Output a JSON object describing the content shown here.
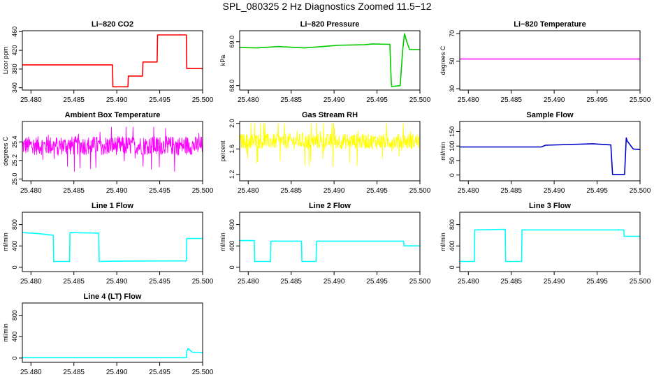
{
  "figure": {
    "title": "SPL_080325  2 Hz Diagnostics Zoomed 11.5−12"
  },
  "chart_data": [
    {
      "type": "line",
      "title": "Li−820 CO2",
      "ylabel": "Licor ppm",
      "xlim": [
        25.479,
        25.5
      ],
      "ylim": [
        335,
        462
      ],
      "xticks": [
        "25.480",
        "25.485",
        "25.490",
        "25.495",
        "25.500"
      ],
      "yticks": [
        "340",
        "380",
        "420",
        "460"
      ],
      "grid": false,
      "series": [
        {
          "color": "#ff0000",
          "x": [
            25.479,
            25.4895,
            25.48955,
            25.4913,
            25.49135,
            25.493,
            25.49305,
            25.4947,
            25.49475,
            25.4981,
            25.49815,
            25.5
          ],
          "y": [
            389,
            389,
            342,
            342,
            365,
            365,
            395,
            395,
            453,
            453,
            381,
            381
          ]
        }
      ]
    },
    {
      "type": "line",
      "title": "Li−820 Pressure",
      "ylabel": "kPa",
      "xlim": [
        25.479,
        25.5
      ],
      "ylim": [
        67.9,
        69.25
      ],
      "xticks": [
        "25.480",
        "25.485",
        "25.490",
        "25.495",
        "25.500"
      ],
      "yticks": [
        "68.0",
        "69.0"
      ],
      "grid": false,
      "series": [
        {
          "color": "#00cc00",
          "x": [
            25.479,
            25.481,
            25.4835,
            25.4865,
            25.488,
            25.4905,
            25.4935,
            25.4945,
            25.4965,
            25.49665,
            25.4967,
            25.4977,
            25.498,
            25.4982,
            25.4985,
            25.4988,
            25.5
          ],
          "y": [
            68.87,
            68.86,
            68.89,
            68.86,
            68.88,
            68.92,
            68.93,
            68.95,
            68.94,
            68.14,
            67.98,
            68.0,
            68.82,
            69.18,
            68.98,
            68.82,
            68.82
          ]
        }
      ]
    },
    {
      "type": "line",
      "title": "Li−820 Temperature",
      "ylabel": "degrees C",
      "xlim": [
        25.479,
        25.5
      ],
      "ylim": [
        29,
        72
      ],
      "xticks": [
        "25.480",
        "25.485",
        "25.490",
        "25.495",
        "25.500"
      ],
      "yticks": [
        "30",
        "50",
        "70"
      ],
      "grid": false,
      "series": [
        {
          "color": "#ff00ff",
          "x": [
            25.479,
            25.5
          ],
          "y": [
            51.5,
            51.5
          ]
        }
      ]
    },
    {
      "type": "line",
      "title": "Ambient Box Temperature",
      "ylabel": "degrees C",
      "xlim": [
        25.479,
        25.5
      ],
      "ylim": [
        24.98,
        25.62
      ],
      "xticks": [
        "25.480",
        "25.485",
        "25.490",
        "25.495",
        "25.500"
      ],
      "yticks": [
        "25.0",
        "25.2",
        "25.4"
      ],
      "grid": false,
      "series": [
        {
          "color": "#ff00ff",
          "noise": true,
          "base": 25.36,
          "amp": 0.1,
          "lo": 25.04,
          "hi": 25.56,
          "x": [
            25.479,
            25.5
          ],
          "y": [
            25.36,
            25.36
          ]
        }
      ]
    },
    {
      "type": "line",
      "title": "Gas Stream RH",
      "ylabel": "percent",
      "xlim": [
        25.479,
        25.5
      ],
      "ylim": [
        1.1,
        2.03
      ],
      "xticks": [
        "25.480",
        "25.485",
        "25.490",
        "25.495",
        "25.500"
      ],
      "yticks": [
        "1.2",
        "1.6",
        "2.0"
      ],
      "grid": false,
      "series": [
        {
          "color": "#ffff00",
          "noise": true,
          "base": 1.72,
          "amp": 0.12,
          "lo": 1.2,
          "hi": 2.0,
          "x": [
            25.479,
            25.5
          ],
          "y": [
            1.72,
            1.72
          ]
        }
      ]
    },
    {
      "type": "line",
      "title": "Sample Flow",
      "ylabel": "ml/min",
      "xlim": [
        25.479,
        25.5
      ],
      "ylim": [
        -20,
        185
      ],
      "xticks": [
        "25.480",
        "25.485",
        "25.490",
        "25.495",
        "25.500"
      ],
      "yticks": [
        "0",
        "50",
        "100",
        "150"
      ],
      "grid": false,
      "series": [
        {
          "color": "#0000cc",
          "x": [
            25.479,
            25.485,
            25.4885,
            25.489,
            25.4945,
            25.4966,
            25.4968,
            25.4982,
            25.4984,
            25.4985,
            25.4992,
            25.5
          ],
          "y": [
            97,
            97,
            97,
            103,
            108,
            104,
            2,
            2,
            128,
            118,
            90,
            88
          ]
        }
      ]
    },
    {
      "type": "line",
      "title": "Line 1 Flow",
      "ylabel": "ml/min",
      "xlim": [
        25.479,
        25.5
      ],
      "ylim": [
        -80,
        1030
      ],
      "xticks": [
        "25.480",
        "25.485",
        "25.490",
        "25.495",
        "25.500"
      ],
      "yticks": [
        "0",
        "400",
        "800"
      ],
      "grid": false,
      "series": [
        {
          "color": "#00ffff",
          "x": [
            25.479,
            25.4808,
            25.4826,
            25.48265,
            25.4845,
            25.48455,
            25.4879,
            25.48795,
            25.4898,
            25.4981,
            25.49815,
            25.5
          ],
          "y": [
            650,
            630,
            600,
            110,
            110,
            650,
            640,
            110,
            115,
            120,
            540,
            540
          ]
        }
      ]
    },
    {
      "type": "line",
      "title": "Line 2 Flow",
      "ylabel": "ml/min",
      "xlim": [
        25.479,
        25.5
      ],
      "ylim": [
        -80,
        1030
      ],
      "xticks": [
        "25.480",
        "25.485",
        "25.490",
        "25.495",
        "25.500"
      ],
      "yticks": [
        "0",
        "400",
        "800"
      ],
      "grid": false,
      "series": [
        {
          "color": "#00ffff",
          "x": [
            25.479,
            25.4807,
            25.48075,
            25.4826,
            25.48265,
            25.4862,
            25.48625,
            25.4879,
            25.48795,
            25.4981,
            25.49815,
            25.5
          ],
          "y": [
            500,
            500,
            110,
            110,
            490,
            490,
            110,
            110,
            490,
            490,
            400,
            400
          ]
        }
      ]
    },
    {
      "type": "line",
      "title": "Line 3 Flow",
      "ylabel": "ml/min",
      "xlim": [
        25.479,
        25.5
      ],
      "ylim": [
        -80,
        1030
      ],
      "xticks": [
        "25.480",
        "25.485",
        "25.490",
        "25.495",
        "25.500"
      ],
      "yticks": [
        "0",
        "400",
        "800"
      ],
      "grid": false,
      "series": [
        {
          "color": "#00ffff",
          "x": [
            25.479,
            25.4807,
            25.48075,
            25.4843,
            25.48435,
            25.4862,
            25.48625,
            25.4981,
            25.49815,
            25.5
          ],
          "y": [
            110,
            110,
            700,
            710,
            110,
            110,
            700,
            700,
            580,
            580
          ]
        }
      ]
    },
    {
      "type": "line",
      "title": "Line 4 (LT) Flow",
      "ylabel": "ml/min",
      "xlim": [
        25.479,
        25.5
      ],
      "ylim": [
        -80,
        1030
      ],
      "xticks": [
        "25.480",
        "25.485",
        "25.490",
        "25.495",
        "25.500"
      ],
      "yticks": [
        "0",
        "400",
        "800"
      ],
      "grid": false,
      "series": [
        {
          "color": "#00ffff",
          "x": [
            25.479,
            25.4981,
            25.49815,
            25.4983,
            25.4988,
            25.5
          ],
          "y": [
            8,
            8,
            120,
            180,
            110,
            105
          ]
        }
      ]
    }
  ]
}
